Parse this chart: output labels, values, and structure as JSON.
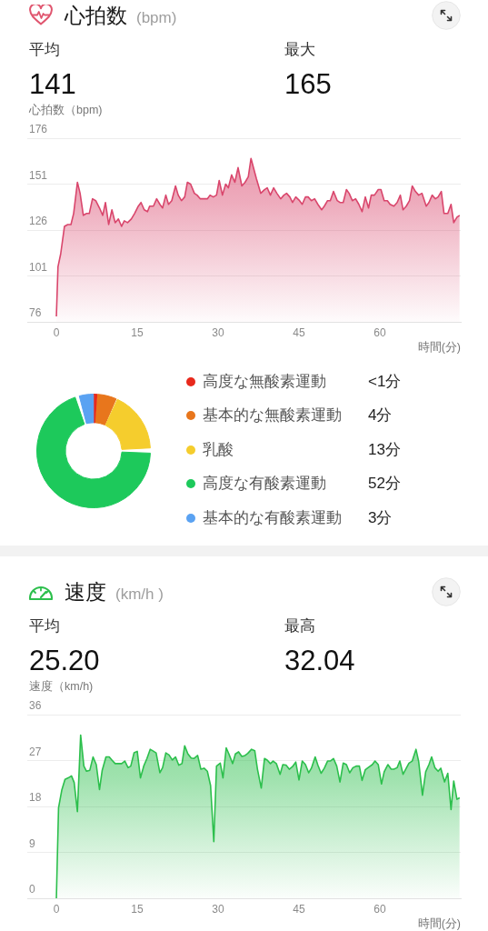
{
  "chart_data": [
    {
      "type": "area",
      "title": "心拍数",
      "subtitle": "(bpm)",
      "ylabel": "心拍数（bpm)",
      "xlabel": "時間(分)",
      "annotations": [
        "平均",
        "141",
        "最大",
        "165"
      ],
      "x": [
        0,
        0.3,
        0.8,
        1.5,
        2.1,
        2.7,
        3.2,
        3.9,
        4.4,
        5.0,
        5.6,
        6.1,
        6.7,
        7.3,
        8.0,
        8.6,
        9.1,
        9.7,
        10.3,
        10.9,
        11.5,
        12.1,
        12.6,
        13.2,
        13.9,
        14.5,
        15.2,
        15.7,
        16.3,
        16.9,
        17.3,
        18.0,
        18.6,
        19.2,
        19.7,
        20.3,
        20.8,
        21.4,
        22.1,
        22.6,
        23.2,
        23.8,
        24.3,
        24.9,
        25.6,
        26.1,
        26.7,
        27.4,
        28.0,
        28.5,
        29.1,
        29.7,
        30.2,
        30.8,
        31.4,
        31.9,
        32.5,
        33.1,
        33.7,
        34.4,
        35.0,
        35.6,
        36.1,
        37.1,
        37.9,
        38.6,
        39.1,
        39.7,
        40.3,
        40.9,
        41.6,
        42.2,
        42.7,
        43.3,
        43.8,
        44.4,
        45.1,
        45.6,
        46.2,
        46.7,
        47.3,
        47.9,
        48.5,
        49.2,
        49.7,
        50.3,
        50.8,
        51.4,
        52.1,
        52.6,
        53.2,
        53.8,
        54.3,
        54.9,
        55.5,
        56.1,
        56.7,
        57.3,
        57.9,
        58.4,
        59.0,
        59.7,
        60.2,
        60.8,
        61.4,
        61.9,
        62.6,
        63.2,
        63.8,
        64.3,
        64.9,
        65.5,
        66.0,
        66.6,
        67.2,
        67.8,
        68.6,
        69.1,
        69.7,
        70.3,
        70.8,
        71.4,
        71.9,
        72.6,
        73.2,
        73.7,
        74.3,
        74.8
      ],
      "values": [
        79,
        106,
        113,
        128,
        129,
        129,
        135,
        152,
        146,
        134,
        135,
        135,
        143,
        142,
        138,
        134,
        141,
        129,
        137,
        130,
        132,
        128,
        131,
        130,
        132,
        135,
        139,
        141,
        137,
        136,
        139,
        139,
        143,
        140,
        138,
        145,
        140,
        142,
        150,
        145,
        142,
        144,
        152,
        151,
        146,
        145,
        143,
        143,
        143,
        145,
        144,
        145,
        153,
        145,
        151,
        149,
        156,
        152,
        160,
        150,
        152,
        155,
        165,
        154,
        146,
        148,
        149,
        145,
        149,
        146,
        143,
        145,
        146,
        144,
        141,
        144,
        142,
        140,
        144,
        144,
        142,
        143,
        140,
        137,
        139,
        142,
        142,
        147,
        142,
        141,
        141,
        148,
        146,
        142,
        143,
        140,
        136,
        144,
        138,
        145,
        145,
        148,
        148,
        142,
        142,
        140,
        139,
        141,
        145,
        137,
        139,
        142,
        150,
        147,
        145,
        146,
        139,
        141,
        145,
        143,
        144,
        147,
        135,
        135,
        140,
        130,
        133,
        134
      ],
      "color": "#d9466c",
      "xlim": [
        -5.4,
        75
      ],
      "xticks": [
        0,
        15,
        30,
        45,
        60
      ],
      "ylim": [
        76,
        176
      ],
      "yticks": [
        76,
        101,
        126,
        151,
        176
      ],
      "grid": "y"
    },
    {
      "type": "donut",
      "categories": [
        "高度な無酸素運動",
        "基本的な無酸素運動",
        "乳酸",
        "高度な有酸素運動",
        "基本的な有酸素運動"
      ],
      "values": [
        0.8,
        4,
        13,
        52,
        3
      ],
      "value_labels": [
        "<1分",
        "4分",
        "13分",
        "52分",
        "3分"
      ],
      "colors": [
        "#e8291c",
        "#e8761c",
        "#f5cd2d",
        "#1dc95b",
        "#5aa2f2"
      ],
      "legend": "right"
    },
    {
      "type": "area",
      "title": "速度",
      "subtitle": "(km/h )",
      "ylabel": "速度（km/h)",
      "xlabel": "時間(分)",
      "annotations": [
        "平均",
        "25.20",
        "最高",
        "32.04"
      ],
      "x": [
        0,
        0.4,
        1.0,
        1.6,
        2.2,
        2.8,
        3.3,
        3.9,
        4.5,
        5.1,
        5.6,
        6.2,
        6.8,
        7.4,
        8.0,
        8.5,
        9.2,
        9.8,
        10.3,
        10.9,
        11.5,
        12.1,
        12.7,
        13.3,
        13.8,
        14.4,
        15.0,
        15.6,
        16.2,
        16.8,
        17.4,
        17.9,
        18.5,
        19.2,
        19.7,
        20.3,
        20.9,
        21.5,
        22.1,
        22.7,
        23.3,
        23.8,
        24.4,
        25.0,
        25.5,
        26.2,
        26.8,
        27.4,
        28.0,
        28.6,
        29.2,
        29.7,
        30.4,
        30.9,
        31.5,
        32.0,
        32.7,
        33.2,
        33.8,
        34.4,
        35.0,
        35.5,
        36.2,
        36.8,
        37.3,
        38.0,
        38.6,
        39.1,
        39.7,
        40.2,
        40.8,
        41.5,
        42.0,
        42.6,
        43.2,
        43.8,
        44.4,
        45.0,
        45.6,
        46.2,
        46.8,
        47.3,
        48.0,
        48.5,
        49.1,
        49.7,
        50.3,
        50.8,
        51.4,
        52.0,
        52.6,
        53.2,
        53.8,
        54.4,
        55.0,
        55.6,
        56.2,
        56.7,
        57.3,
        57.8,
        58.6,
        59.1,
        59.7,
        60.3,
        60.8,
        61.5,
        62.1,
        62.6,
        63.2,
        63.7,
        64.3,
        64.9,
        65.4,
        66.0,
        66.7,
        67.2,
        67.9,
        68.5,
        69.1,
        69.6,
        70.2,
        70.8,
        71.3,
        72.0,
        72.6,
        73.2,
        73.7,
        74.3,
        74.8
      ],
      "values": [
        0,
        17.7,
        21.2,
        23.3,
        23.6,
        24.0,
        22.7,
        17.0,
        32.0,
        25.9,
        24.9,
        25.1,
        27.7,
        26.2,
        21.3,
        25.1,
        27.7,
        27.7,
        27.1,
        26.4,
        26.4,
        26.4,
        26.9,
        25.6,
        25.9,
        28.5,
        28.8,
        23.6,
        25.9,
        27.4,
        29.2,
        28.9,
        28.5,
        24.6,
        25.6,
        28.5,
        28.1,
        27.1,
        27.7,
        26.1,
        26.4,
        29.9,
        28.3,
        27.5,
        27.4,
        28.0,
        25.3,
        25.5,
        24.9,
        22.1,
        11.1,
        25.9,
        26.5,
        23.6,
        29.5,
        28.3,
        26.4,
        28.3,
        28.7,
        27.8,
        28.0,
        28.4,
        29.2,
        28.9,
        25.3,
        21.6,
        27.4,
        27.1,
        26.4,
        26.9,
        26.4,
        24.3,
        26.2,
        26.1,
        25.3,
        25.8,
        26.7,
        23.2,
        26.9,
        26.2,
        24.6,
        25.5,
        27.7,
        26.1,
        24.5,
        25.5,
        26.9,
        26.9,
        27.4,
        25.9,
        22.8,
        26.5,
        26.2,
        24.6,
        25.6,
        25.9,
        25.9,
        23.1,
        25.2,
        25.6,
        26.2,
        26.9,
        26.2,
        22.4,
        24.8,
        26.2,
        25.3,
        25.3,
        25.6,
        26.9,
        24.3,
        25.5,
        26.5,
        26.9,
        29.2,
        26.8,
        20.2,
        24.8,
        26.2,
        27.7,
        25.6,
        24.9,
        25.5,
        22.8,
        24.5,
        17.4,
        23.0,
        19.4,
        19.7
      ],
      "color": "#2cbf4c",
      "xlim": [
        -5.4,
        75
      ],
      "xticks": [
        0,
        15,
        30,
        45,
        60
      ],
      "ylim": [
        0,
        36
      ],
      "yticks": [
        0,
        9,
        18,
        27,
        36
      ],
      "grid": "y"
    }
  ]
}
